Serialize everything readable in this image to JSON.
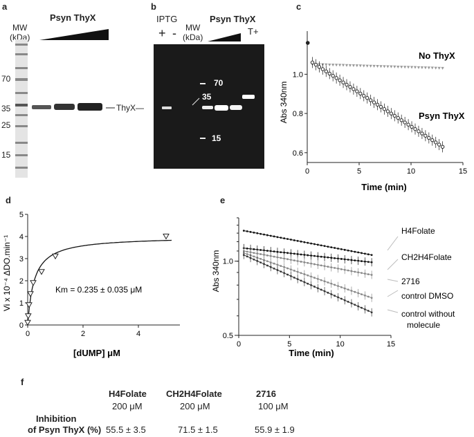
{
  "panels": {
    "a": {
      "letter": "a",
      "mw_label": "MW",
      "kda_label": "(kDa)",
      "title": "Psyn ThyX",
      "marker_labels": [
        "70",
        "35",
        "25",
        "15"
      ],
      "band_label": "ThyX"
    },
    "b": {
      "letter": "b",
      "iptg_label": "IPTG",
      "plus": "+",
      "minus": "-",
      "mw_label": "MW",
      "kda_label": "(kDa)",
      "title": "Psyn ThyX",
      "tplus": "T+",
      "marker_labels": [
        "70",
        "35",
        "15"
      ]
    },
    "c": {
      "letter": "c",
      "ylabel": "Abs 340nm",
      "xlabel": "Time (min)",
      "series_labels": [
        "No ThyX",
        "Psyn ThyX"
      ]
    },
    "d": {
      "letter": "d",
      "ylabel": "Vi x 10⁻⁴ ΔDO.min⁻¹",
      "xlabel": "[dUMP] μM",
      "annotation": "Km = 0.235 ± 0.035 μM"
    },
    "e": {
      "letter": "e",
      "ylabel": "Abs 340nm",
      "xlabel": "Time (min)",
      "series_labels": [
        "H4Folate",
        "CH2H4Folate",
        "2716",
        "control DMSO",
        "control without",
        "molecule"
      ]
    },
    "f": {
      "letter": "f",
      "headers": [
        "H4Folate",
        "CH2H4Folate",
        "2716"
      ],
      "concentrations": [
        "200 μM",
        "200 μM",
        "100 μM"
      ],
      "row_label_1": "Inhibition",
      "row_label_2": "of Psyn ThyX (%)",
      "values": [
        "55.5 ± 3.5",
        "71.5 ± 1.5",
        "55.9 ± 1.9"
      ]
    }
  },
  "chart_data": [
    {
      "id": "c",
      "type": "scatter",
      "xlabel": "Time (min)",
      "ylabel": "Abs 340nm",
      "xlim": [
        0,
        15
      ],
      "ylim": [
        0.55,
        1.22
      ],
      "xticks": [
        "0",
        "5",
        "10",
        "15"
      ],
      "yticks": [
        "0.6",
        "0.8",
        "1.0"
      ],
      "series": [
        {
          "name": "No ThyX",
          "x": [
            0.5,
            13.1
          ],
          "y": [
            1.05,
            1.03
          ],
          "step": 0.33,
          "marker": "triangle",
          "color": "#9a9a9a"
        },
        {
          "name": "Psyn ThyX",
          "x": [
            0.5,
            13.1
          ],
          "y": [
            1.06,
            0.63
          ],
          "step": 0.33,
          "marker": "circle",
          "color": "#222222",
          "start_point": [
            0.05,
            1.16
          ]
        }
      ]
    },
    {
      "id": "d",
      "type": "scatter",
      "xlabel": "[dUMP] μM",
      "xlim": [
        0,
        5.5
      ],
      "ylim": [
        0,
        5
      ],
      "xticks": [
        "0",
        "2",
        "4"
      ],
      "yticks": [
        "0",
        "1",
        "2",
        "3",
        "4",
        "5"
      ],
      "points": {
        "x": [
          0,
          0.02,
          0.05,
          0.1,
          0.2,
          0.5,
          1,
          5
        ],
        "y": [
          0.1,
          0.4,
          0.9,
          1.4,
          1.9,
          2.4,
          3.1,
          4.0
        ]
      },
      "fit": {
        "vmax": 4.0,
        "km": 0.235
      }
    },
    {
      "id": "e",
      "type": "scatter",
      "xlabel": "Time (min)",
      "ylabel": "Abs 340nm",
      "xlim": [
        0,
        15
      ],
      "ylim": [
        0.5,
        1.5
      ],
      "log_y": true,
      "xticks": [
        "0",
        "5",
        "10",
        "15"
      ],
      "yticks": [
        "0.5",
        "1.0"
      ],
      "series": [
        {
          "name": "H4Folate",
          "y_start": 1.33,
          "y_end": 1.06,
          "color": "#111111"
        },
        {
          "name": "CH2H4Folate",
          "y_start": 1.13,
          "y_end": 0.99,
          "color": "#111111"
        },
        {
          "name": "2716",
          "y_start": 1.1,
          "y_end": 0.88,
          "color": "#888888"
        },
        {
          "name": "control DMSO",
          "y_start": 1.08,
          "y_end": 0.71,
          "color": "#888888"
        },
        {
          "name": "control without molecule",
          "y_start": 1.06,
          "y_end": 0.62,
          "color": "#333333"
        }
      ]
    }
  ]
}
